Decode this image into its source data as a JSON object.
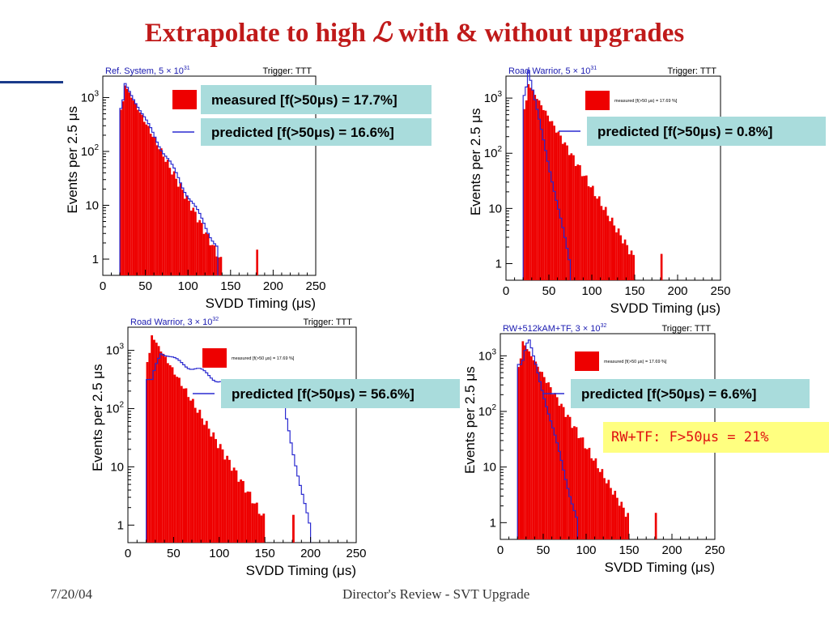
{
  "slide": {
    "title_pre": "Extrapolate to high ",
    "title_symbol": "ℒ",
    "title_post": " with & without upgrades",
    "footer_date": "7/20/04",
    "footer_center": "Director's Review - SVT Upgrade",
    "rwtf_note": "RW+TF:  F>50μs = 21%"
  },
  "colors": {
    "measured": "#ee0000",
    "predicted": "#2a2ad0",
    "legend_box": "#a9dcdc",
    "title": "#c01a1a",
    "note_bg": "#ffff80"
  },
  "chart_data": [
    {
      "type": "bar",
      "panel_title": "Ref. System, 5 × 10",
      "panel_title_exp": "31",
      "trigger": "Trigger: TTT",
      "xlabel": "SVDD Timing (μs)",
      "ylabel": "Events per 2.5 μs",
      "xlim": [
        0,
        250
      ],
      "ylim": [
        0.5,
        2500
      ],
      "yscale": "log",
      "x_ticks": [
        0,
        50,
        100,
        150,
        200,
        250
      ],
      "y_ticks": [
        {
          "v": 1,
          "label": "1"
        },
        {
          "v": 10,
          "label": "10"
        },
        {
          "v": 100,
          "label": "10",
          "exp": "2"
        },
        {
          "v": 1000,
          "label": "10",
          "exp": "3"
        }
      ],
      "legend_measured": "measured [f(>50μs) = 17.7%]",
      "legend_predicted": "predicted [f(>50μs) = 16.6%]",
      "legend_measured_style": "big",
      "series": [
        {
          "name": "measured",
          "peak": 1700,
          "start": 20,
          "rise_end": 25,
          "decay": 15,
          "end": 140,
          "tail_spikes": [
            [
              180,
              1.5
            ]
          ]
        },
        {
          "name": "predicted",
          "peak": 1800,
          "start": 20,
          "rise_end": 25,
          "decay": 15.5,
          "end": 135
        }
      ]
    },
    {
      "type": "bar",
      "panel_title": "Road Warrior, 5 × 10",
      "panel_title_exp": "31",
      "trigger": "Trigger: TTT",
      "xlabel": "SVDD Timing (μs)",
      "ylabel": "Events per 2.5 μs",
      "xlim": [
        0,
        250
      ],
      "ylim": [
        0.5,
        2500
      ],
      "yscale": "log",
      "x_ticks": [
        0,
        50,
        100,
        150,
        200,
        250
      ],
      "y_ticks": [
        {
          "v": 1,
          "label": "1"
        },
        {
          "v": 10,
          "label": "10"
        },
        {
          "v": 100,
          "label": "10",
          "exp": "2"
        },
        {
          "v": 1000,
          "label": "10",
          "exp": "3"
        }
      ],
      "legend_measured": "measured [f(>50 μs) = 17.69 %]",
      "legend_predicted": "predicted [f(>50μs) = 0.8%]",
      "legend_measured_style": "small",
      "series": [
        {
          "name": "measured",
          "peak": 1800,
          "start": 20,
          "rise_end": 25,
          "decay": 17,
          "end": 150,
          "tail_spikes": [
            [
              180,
              1.5
            ]
          ]
        },
        {
          "name": "predicted",
          "peak": 3200,
          "start": 20,
          "rise_end": 25,
          "decay": 6,
          "end": 80
        }
      ]
    },
    {
      "type": "bar",
      "panel_title": "Road Warrior, 3 × 10",
      "panel_title_exp": "32",
      "trigger": "Trigger: TTT",
      "xlabel": "SVDD Timing (μs)",
      "ylabel": "Events per 2.5 μs",
      "xlim": [
        0,
        250
      ],
      "ylim": [
        0.5,
        2500
      ],
      "yscale": "log",
      "x_ticks": [
        0,
        50,
        100,
        150,
        200,
        250
      ],
      "y_ticks": [
        {
          "v": 1,
          "label": "1"
        },
        {
          "v": 10,
          "label": "10"
        },
        {
          "v": 100,
          "label": "10",
          "exp": "2"
        },
        {
          "v": 1000,
          "label": "10",
          "exp": "3"
        }
      ],
      "legend_measured": "measured [f(>50 μs) = 17.69 %]",
      "legend_predicted": "predicted [f(>50μs) = 56.6%]",
      "legend_measured_style": "small",
      "series": [
        {
          "name": "measured",
          "peak": 1800,
          "start": 20,
          "rise_end": 25,
          "decay": 17,
          "end": 150,
          "tail_spikes": [
            [
              180,
              1.5
            ]
          ]
        },
        {
          "name": "predicted",
          "peak": 900,
          "start": 20,
          "rise_end": 35,
          "decay": 60,
          "end": 200,
          "steep_after": 170,
          "steep_decay": 6
        }
      ]
    },
    {
      "type": "bar",
      "panel_title": "RW+512kAM+TF, 3 × 10",
      "panel_title_exp": "32",
      "trigger": "Trigger: TTT",
      "xlabel": "SVDD Timing (μs)",
      "ylabel": "Events per 2.5 μs",
      "xlim": [
        0,
        250
      ],
      "ylim": [
        0.5,
        2500
      ],
      "yscale": "log",
      "x_ticks": [
        0,
        50,
        100,
        150,
        200,
        250
      ],
      "y_ticks": [
        {
          "v": 1,
          "label": "1"
        },
        {
          "v": 10,
          "label": "10"
        },
        {
          "v": 100,
          "label": "10",
          "exp": "2"
        },
        {
          "v": 1000,
          "label": "10",
          "exp": "3"
        }
      ],
      "legend_measured": "measured [f(>50 μs) = 17.69 %]",
      "legend_predicted": "predicted [f(>50μs) = 6.6%]",
      "legend_measured_style": "small",
      "series": [
        {
          "name": "measured",
          "peak": 1800,
          "start": 20,
          "rise_end": 25,
          "decay": 17,
          "end": 150,
          "tail_spikes": [
            [
              180,
              1.5
            ]
          ]
        },
        {
          "name": "predicted",
          "peak": 2000,
          "start": 20,
          "rise_end": 32,
          "decay": 7.5,
          "end": 90
        }
      ]
    }
  ]
}
